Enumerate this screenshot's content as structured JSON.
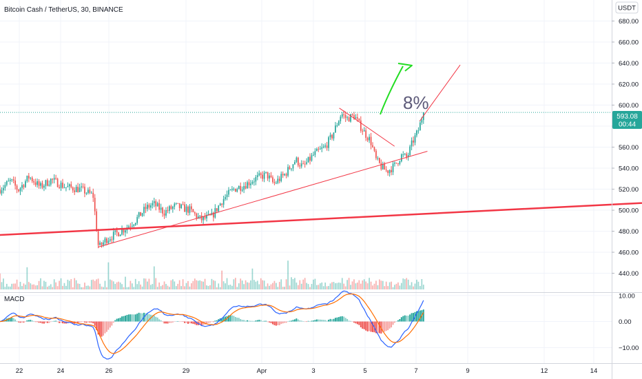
{
  "header": {
    "symbol": "Bitcoin Cash / TetherUS, 30, BINANCE",
    "currency": "USDT",
    "indicator": "MACD"
  },
  "price_tag": {
    "value": "593.08",
    "countdown": "00:44"
  },
  "annotation": {
    "text": "8%"
  },
  "colors": {
    "up": "#26a69a",
    "down": "#ef5350",
    "trend": "#f23645",
    "arrow": "#22dd22",
    "macd": "#2962ff",
    "signal": "#ff6d00",
    "price_tag": "#26a69a",
    "annotation": "#5d5a79"
  },
  "chart_data": [
    {
      "type": "candlestick",
      "x_tick_labels": [
        "22",
        "24",
        "26",
        "29",
        "Apr",
        "3",
        "5",
        "7",
        "9",
        "12",
        "14"
      ],
      "y_tick_labels": [
        "440.00",
        "460.00",
        "480.00",
        "500.00",
        "520.00",
        "540.00",
        "560.00",
        "580.00",
        "600.00",
        "620.00",
        "640.00",
        "660.00",
        "680.00"
      ],
      "ylim": [
        422,
        700
      ],
      "last_price": 593.08,
      "path": [
        [
          0,
          520
        ],
        [
          0.03,
          528
        ],
        [
          0.05,
          519
        ],
        [
          0.08,
          532
        ],
        [
          0.11,
          522
        ],
        [
          0.14,
          529
        ],
        [
          0.18,
          522
        ],
        [
          0.22,
          520
        ],
        [
          0.255,
          514
        ],
        [
          0.27,
          464
        ],
        [
          0.29,
          472
        ],
        [
          0.31,
          476
        ],
        [
          0.34,
          482
        ],
        [
          0.37,
          490
        ],
        [
          0.4,
          502
        ],
        [
          0.42,
          506
        ],
        [
          0.45,
          498
        ],
        [
          0.48,
          504
        ],
        [
          0.52,
          500
        ],
        [
          0.55,
          491
        ],
        [
          0.58,
          494
        ],
        [
          0.61,
          510
        ],
        [
          0.64,
          520
        ],
        [
          0.67,
          524
        ],
        [
          0.7,
          530
        ],
        [
          0.73,
          534
        ],
        [
          0.75,
          525
        ],
        [
          0.78,
          534
        ],
        [
          0.81,
          548
        ],
        [
          0.83,
          541
        ],
        [
          0.86,
          553
        ],
        [
          0.89,
          560
        ],
        [
          0.91,
          571
        ],
        [
          0.935,
          592
        ],
        [
          0.95,
          587
        ],
        [
          0.97,
          590
        ],
        [
          0.985,
          581
        ],
        [
          1.0,
          573
        ],
        [
          1.015,
          566
        ],
        [
          1.03,
          548
        ],
        [
          1.045,
          541
        ],
        [
          1.06,
          537
        ],
        [
          1.08,
          542
        ],
        [
          1.1,
          552
        ],
        [
          1.115,
          550
        ],
        [
          1.13,
          565
        ],
        [
          1.145,
          575
        ],
        [
          1.16,
          593
        ]
      ],
      "path_x_units": "relative position between first candle (0) and the candle at label '5' (1.0)",
      "trendlines": [
        {
          "from": [
            -0.2,
            473
          ],
          "to": [
            2.0,
            511
          ],
          "style": "thick"
        },
        {
          "from": [
            0.27,
            465
          ],
          "to": [
            1.17,
            556
          ],
          "style": "thin"
        },
        {
          "from": [
            0.93,
            597
          ],
          "to": [
            1.08,
            561
          ],
          "style": "thin"
        },
        {
          "from": [
            1.15,
            585
          ],
          "to": [
            1.26,
            638
          ],
          "style": "thin"
        }
      ]
    },
    {
      "type": "histogram",
      "indicator": "MACD",
      "y_tick_labels": [
        "10.00",
        "0.00",
        "−10.00"
      ],
      "ylim": [
        -16,
        11
      ]
    }
  ]
}
